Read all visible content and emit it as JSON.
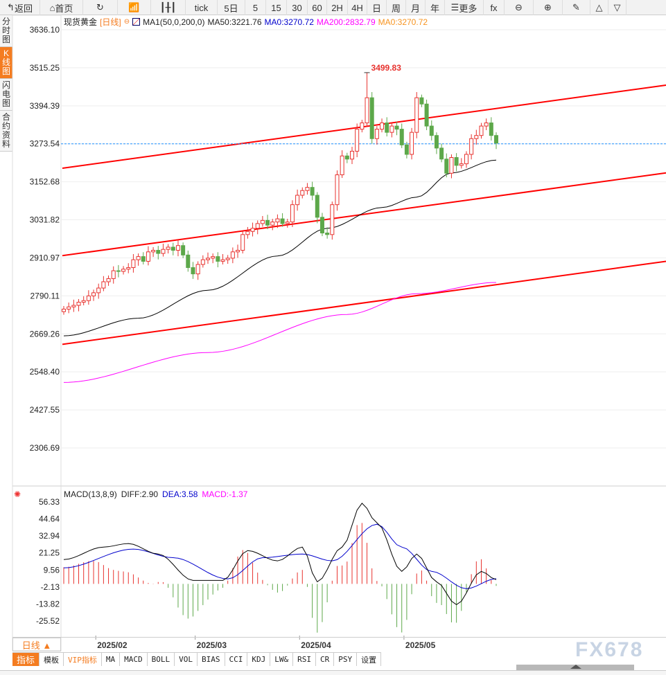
{
  "toolbar": {
    "items": [
      {
        "icon": "back-icon",
        "label": "返回"
      },
      {
        "icon": "home-icon",
        "label": "首页"
      },
      {
        "icon": "refresh-icon",
        "label": ""
      },
      {
        "icon": "bar-chart-icon",
        "label": ""
      },
      {
        "icon": "candlestick-icon",
        "label": ""
      },
      {
        "label": "tick"
      },
      {
        "label": "5日"
      },
      {
        "label": "5"
      },
      {
        "label": "15"
      },
      {
        "label": "30"
      },
      {
        "label": "60"
      },
      {
        "label": "2H"
      },
      {
        "label": "4H"
      },
      {
        "label": "日"
      },
      {
        "label": "周"
      },
      {
        "label": "月"
      },
      {
        "label": "年"
      },
      {
        "icon": "menu-icon",
        "label": "更多"
      },
      {
        "icon": "fx-icon",
        "label": "fx"
      },
      {
        "icon": "zoom-out-icon",
        "label": "⊖"
      },
      {
        "icon": "zoom-in-icon",
        "label": "⊕"
      },
      {
        "icon": "pen-icon",
        "label": "✎"
      },
      {
        "icon": "triangle-up-icon",
        "label": "△"
      },
      {
        "icon": "triangle-down-icon",
        "label": "▽"
      }
    ]
  },
  "left_tabs": [
    "分时图",
    "K线图",
    "闪电图",
    "合约资料"
  ],
  "legend": {
    "symbol": "现货黄金",
    "period": "[日线]",
    "indicator": "MA1(50,0,200,0)",
    "ma50": "MA50:3221.76",
    "ma0": "MA0:3270.72",
    "ma200": "MA200:2832.79",
    "ma0b": "MA0:3270.72"
  },
  "macd_legend": {
    "name": "MACD(13,8,9)",
    "diff": "DIFF:2.90",
    "dea": "DEA:3.58",
    "macd": "MACD:-1.37"
  },
  "colors": {
    "up": "#e8322e",
    "down": "#5da84a",
    "ma50": "#000000",
    "ma200": "#ff00ff",
    "trend": "#ff0000",
    "dea": "#0000cc",
    "macd_label": "#ff00ff",
    "accent": "#f47c20"
  },
  "chart_data": {
    "type": "candlestick",
    "price_ticks": [
      "3636.10",
      "3515.25",
      "3394.39",
      "3273.54",
      "3152.68",
      "3031.82",
      "2910.97",
      "2790.11",
      "2669.26",
      "2548.40",
      "2427.55",
      "2306.69"
    ],
    "macd_ticks": [
      "56.33",
      "44.64",
      "32.94",
      "21.25",
      "9.56",
      "-2.13",
      "-13.82",
      "-25.52"
    ],
    "date_labels": [
      "2025/02",
      "2025/03",
      "2025/04",
      "2025/05"
    ],
    "date_label_index": [
      7,
      27,
      48,
      69
    ],
    "closes": [
      2748,
      2755,
      2760,
      2770,
      2775,
      2790,
      2800,
      2815,
      2835,
      2845,
      2870,
      2868,
      2875,
      2880,
      2905,
      2915,
      2900,
      2930,
      2935,
      2925,
      2938,
      2945,
      2935,
      2950,
      2920,
      2880,
      2860,
      2890,
      2905,
      2910,
      2915,
      2900,
      2905,
      2910,
      2930,
      2935,
      2985,
      2995,
      3005,
      3020,
      3030,
      3015,
      3025,
      3035,
      3020,
      3025,
      3080,
      3110,
      3125,
      3135,
      3110,
      3040,
      2990,
      2985,
      3080,
      3175,
      3235,
      3225,
      3250,
      3320,
      3340,
      3420,
      3290,
      3320,
      3340,
      3310,
      3330,
      3320,
      3270,
      3240,
      3310,
      3420,
      3400,
      3330,
      3300,
      3260,
      3225,
      3180,
      3230,
      3205,
      3210,
      3240,
      3290,
      3300,
      3330,
      3340,
      3300,
      3276
    ],
    "high_annotation": {
      "index": 61,
      "price": 3499.83,
      "label": "3499.83"
    },
    "last_price": 3273.54,
    "ma50_points": [
      [
        0,
        2663
      ],
      [
        15,
        2719
      ],
      [
        29,
        2808
      ],
      [
        43,
        2917
      ],
      [
        53,
        3005
      ],
      [
        64,
        3071
      ],
      [
        71,
        3104
      ],
      [
        78,
        3181
      ],
      [
        87,
        3221.76
      ]
    ],
    "ma200_points": [
      [
        0,
        2515
      ],
      [
        29,
        2610
      ],
      [
        57,
        2731
      ],
      [
        71,
        2797
      ],
      [
        87,
        2832.79
      ]
    ],
    "trend_lines": [
      [
        3196,
        3460
      ],
      [
        2918,
        3181
      ],
      [
        2636,
        2900
      ]
    ],
    "diff_points": [
      [
        0,
        16.7
      ],
      [
        8,
        25.3
      ],
      [
        13,
        27.7
      ],
      [
        19,
        20.5
      ],
      [
        26,
        2.4
      ],
      [
        32,
        2.4
      ],
      [
        37,
        22.9
      ],
      [
        43,
        15.8
      ],
      [
        48,
        25.3
      ],
      [
        51,
        1.4
      ],
      [
        56,
        25.3
      ],
      [
        60,
        55.4
      ],
      [
        63,
        42
      ],
      [
        68,
        8.6
      ],
      [
        71,
        20.5
      ],
      [
        75,
        1.4
      ],
      [
        79,
        -14.3
      ],
      [
        84,
        8.6
      ],
      [
        87,
        2.9
      ]
    ],
    "dea_points": [
      [
        0,
        11
      ],
      [
        14,
        23.9
      ],
      [
        22,
        18
      ],
      [
        33,
        3.4
      ],
      [
        40,
        18
      ],
      [
        48,
        20.5
      ],
      [
        54,
        15.8
      ],
      [
        63,
        41
      ],
      [
        68,
        25.3
      ],
      [
        74,
        8.6
      ],
      [
        81,
        -3.3
      ],
      [
        87,
        3.58
      ]
    ]
  },
  "period_button": "日线 ▲",
  "bottom_tabs": [
    "指标",
    "模板",
    "VIP指标",
    "MA",
    "MACD",
    "BOLL",
    "VOL",
    "BIAS",
    "CCI",
    "KDJ",
    "LW&",
    "RSI",
    "CR",
    "PSY",
    "设置"
  ],
  "watermark": "FX678"
}
